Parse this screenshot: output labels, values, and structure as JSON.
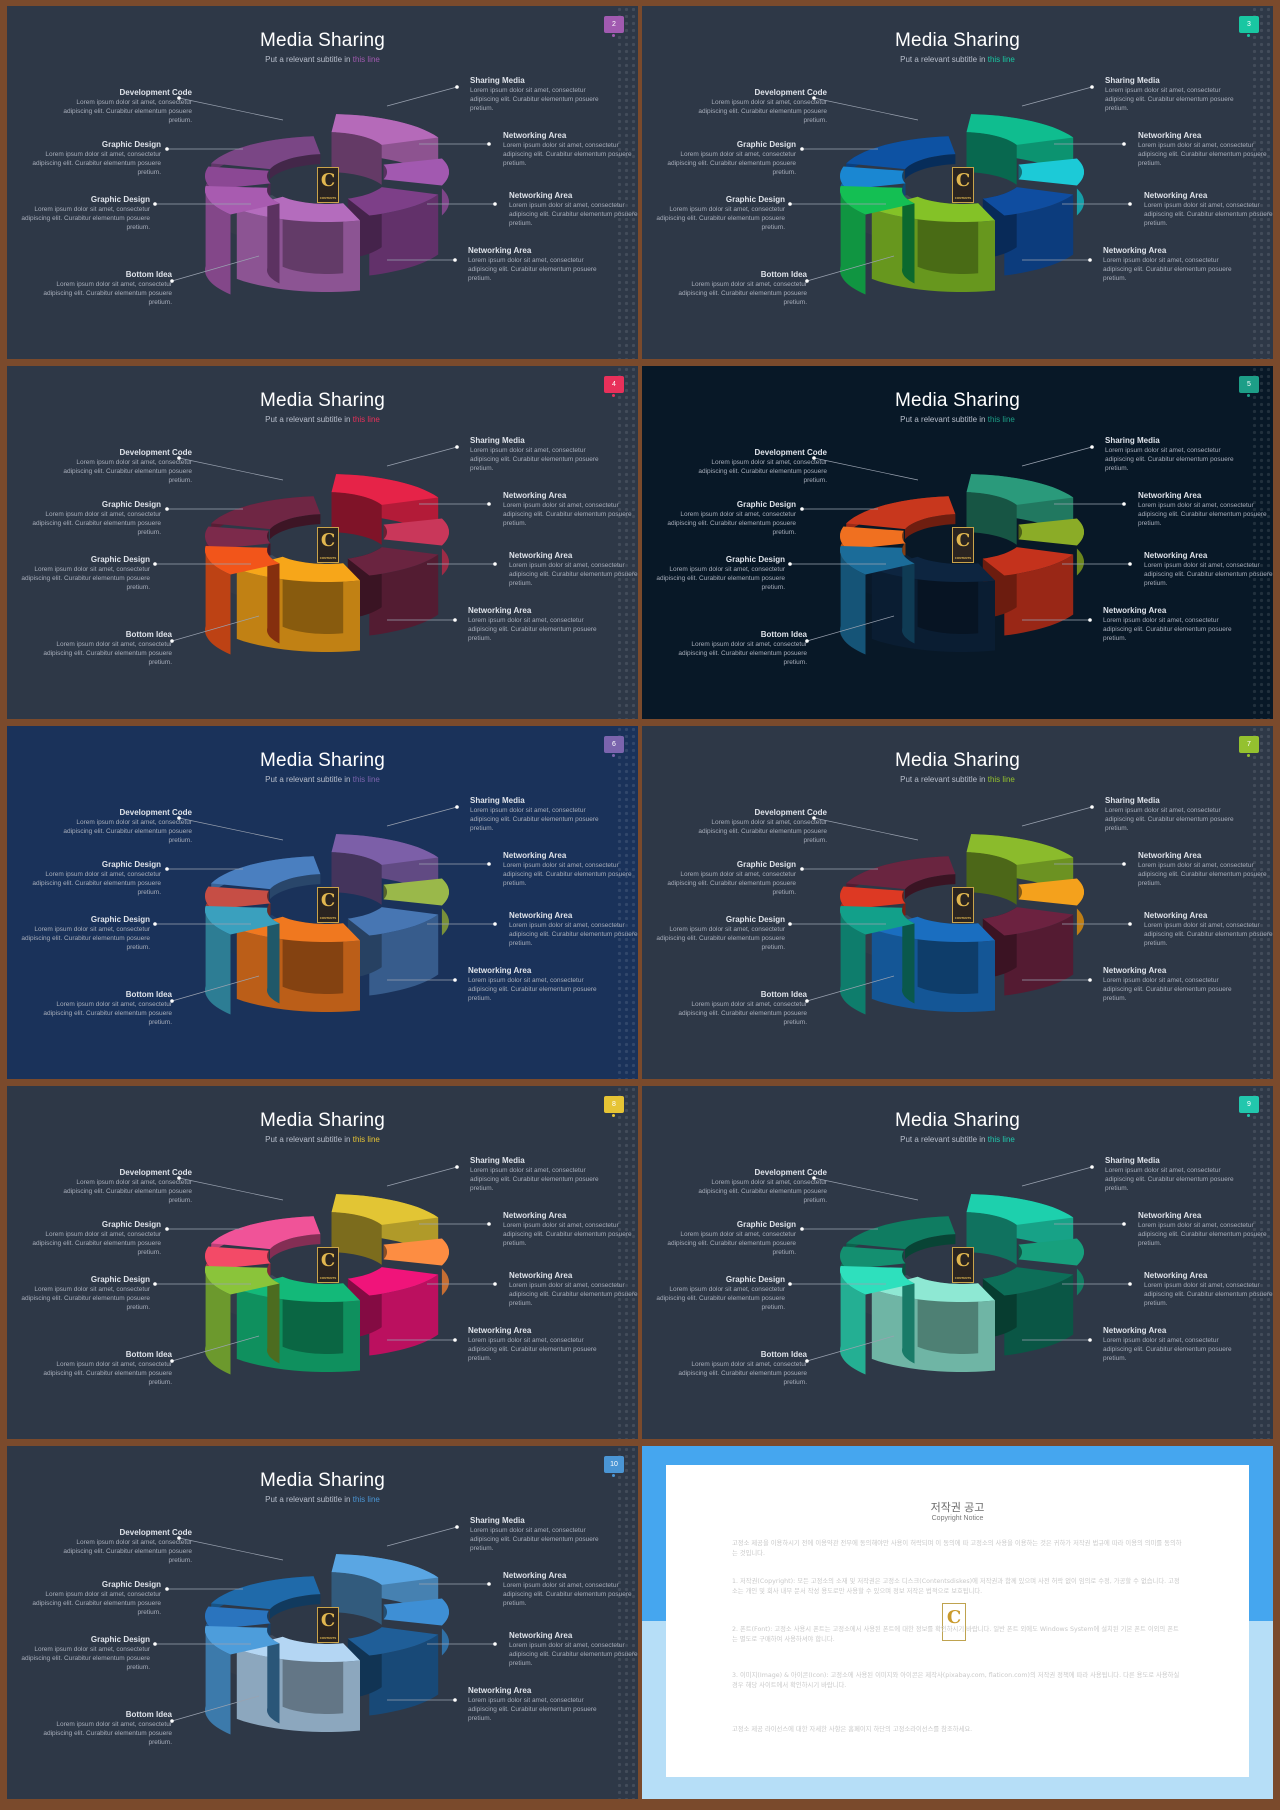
{
  "slides": [
    {
      "number": "2",
      "badge_color": "#a15ab0",
      "bg": "#2e3847",
      "line_color": "#9b4fae",
      "colors": {
        "sharing": "#b56ab9",
        "netA": "#a259b0",
        "netB": "#7d3f88",
        "netC": "#b46cbd",
        "bottom": "#a85bb0",
        "graphic2": "#414b5c",
        "graphic1": "#8b4894",
        "dev": "#7a4685"
      }
    },
    {
      "number": "3",
      "badge_color": "#19c7a2",
      "bg": "#2e3847",
      "line_color": "#1dc3a4",
      "colors": {
        "sharing": "#0fbd8f",
        "netA": "#1ccad7",
        "netB": "#0f4da0",
        "netC": "#84c227",
        "bottom": "#14bf53",
        "graphic2": "#414b5c",
        "graphic1": "#1a87d2",
        "dev": "#0d52a3"
      }
    },
    {
      "number": "4",
      "badge_color": "#e8305a",
      "bg": "#2e3847",
      "line_color": "#e63653",
      "colors": {
        "sharing": "#e62348",
        "netA": "#c9375a",
        "netB": "#6a2440",
        "netC": "#f7a619",
        "bottom": "#f2551a",
        "graphic2": "#414b5c",
        "graphic1": "#7c2a4b",
        "dev": "#6f2644"
      }
    },
    {
      "number": "5",
      "badge_color": "#1d9e87",
      "bg": "#081827",
      "line_color": "#1d9e87",
      "colors": {
        "sharing": "#2a9a7b",
        "netA": "#8bac27",
        "netB": "#c4321c",
        "netC": "#0d2540",
        "bottom": "#1b6c99",
        "graphic2": "#0c2036",
        "graphic1": "#f07020",
        "dev": "#c8371d"
      }
    },
    {
      "number": "6",
      "badge_color": "#7b64ad",
      "bg": "#1a325a",
      "line_color": "#9177c0",
      "colors": {
        "sharing": "#7c5fa8",
        "netA": "#9ab84a",
        "netB": "#4776b3",
        "netC": "#f0781f",
        "bottom": "#3aa0be",
        "graphic2": "#22416e",
        "graphic1": "#c64e45",
        "dev": "#4a7fc0"
      }
    },
    {
      "number": "7",
      "badge_color": "#94c12f",
      "bg": "#2e3847",
      "line_color": "#92c02c",
      "colors": {
        "sharing": "#8bbb2c",
        "netA": "#f4a11c",
        "netB": "#6c2240",
        "netC": "#1a6ec0",
        "bottom": "#12a08a",
        "graphic2": "#414b5c",
        "graphic1": "#dd3923",
        "dev": "#6a2540"
      }
    },
    {
      "number": "8",
      "badge_color": "#e6c435",
      "bg": "#2e3847",
      "line_color": "#e4c437",
      "colors": {
        "sharing": "#e2c534",
        "netA": "#fd8d42",
        "netB": "#f0147a",
        "netC": "#13b979",
        "bottom": "#8ac43a",
        "graphic2": "#414b5c",
        "graphic1": "#f34a67",
        "dev": "#f05398"
      }
    },
    {
      "number": "9",
      "badge_color": "#22c7ad",
      "bg": "#2e3847",
      "line_color": "#24c9af",
      "colors": {
        "sharing": "#1dd0ad",
        "netA": "#17a07d",
        "netB": "#0d6e58",
        "netC": "#8ee8d3",
        "bottom": "#2ee0bd",
        "graphic2": "#414b5c",
        "graphic1": "#148f70",
        "dev": "#0f7c61"
      }
    },
    {
      "number": "10",
      "badge_color": "#4a95d4",
      "bg": "#2e3847",
      "line_color": "#3f96df",
      "colors": {
        "sharing": "#5aa6e3",
        "netA": "#3e8fd5",
        "netB": "#1f5e98",
        "netC": "#b4d6f3",
        "bottom": "#4d9ddb",
        "graphic2": "#414b5c",
        "graphic1": "#2a74be",
        "dev": "#1f6aaa"
      }
    }
  ],
  "common": {
    "title": "Media Sharing",
    "subtitle_prefix": "Put a relevant subtitle in ",
    "subtitle_highlight": "this line",
    "lorem": "Lorem ipsum dolor sit amet, consectetur adipiscing elit. Curabitur elementum posuere pretium.",
    "labels": {
      "dev": "Development Code",
      "graphic1": "Graphic Design",
      "graphic2": "Graphic Design",
      "bottom": "Bottom Idea",
      "sharing": "Sharing Media",
      "netA": "Networking Area",
      "netB": "Networking Area",
      "netC": "Networking Area"
    },
    "logo_letter": "C",
    "logo_text": "CONTENTS"
  },
  "notice": {
    "title": "저작권 공고",
    "subtitle": "Copyright Notice",
    "paragraphs": [
      "고정소 제공을 이용하시기 전에 이용약관 전부에 동의해야만 사용이 허락되며 이 동의에 따 고정소의 사용을 이용하는 것은 귀하가 저작권 법규에 따라 이용의 의미를 동의하는 것입니다.",
      "1. 저작권(Copyright): 모든 고정소의 소재 및 저작권은 고정소 디스크(Contentsdiskes)에 저작권과 함께 있으며 사전 허락 없이 임의로 수정, 가공할 수 없습니다. 고정소는 개인 및 회사 내부 문서 작성 용도로만 사용할 수 있으며 정보 저작은 법적으로 보호됩니다.",
      "2. 폰트(Font): 고정소 사용시 폰트는 고정소에서 사용된 폰트에 대한 정보를 확인하시기 바랍니다. 일반 폰트 외에도 Windows System에 설치된 기본 폰트 이외의 폰트는 별도로 구매하여 사용하셔야 합니다.",
      "3. 이미지(Image) & 아이콘(Icon): 고정소에 사용된 이미지와 아이콘은 제작사(pixabay.com, flaticon.com)의 저작권 정책에 따라 사용됩니다. 다른 용도로 사용하실 경우 해당 사이트에서 확인하시기 바랍니다.",
      "고정소 제공 라이선스에 대한 자세한 사항은 홈페이지 하단의 고정소라이선스를 참조하세요."
    ],
    "logo_letter": "C",
    "logo_text": "CONTENTS"
  }
}
